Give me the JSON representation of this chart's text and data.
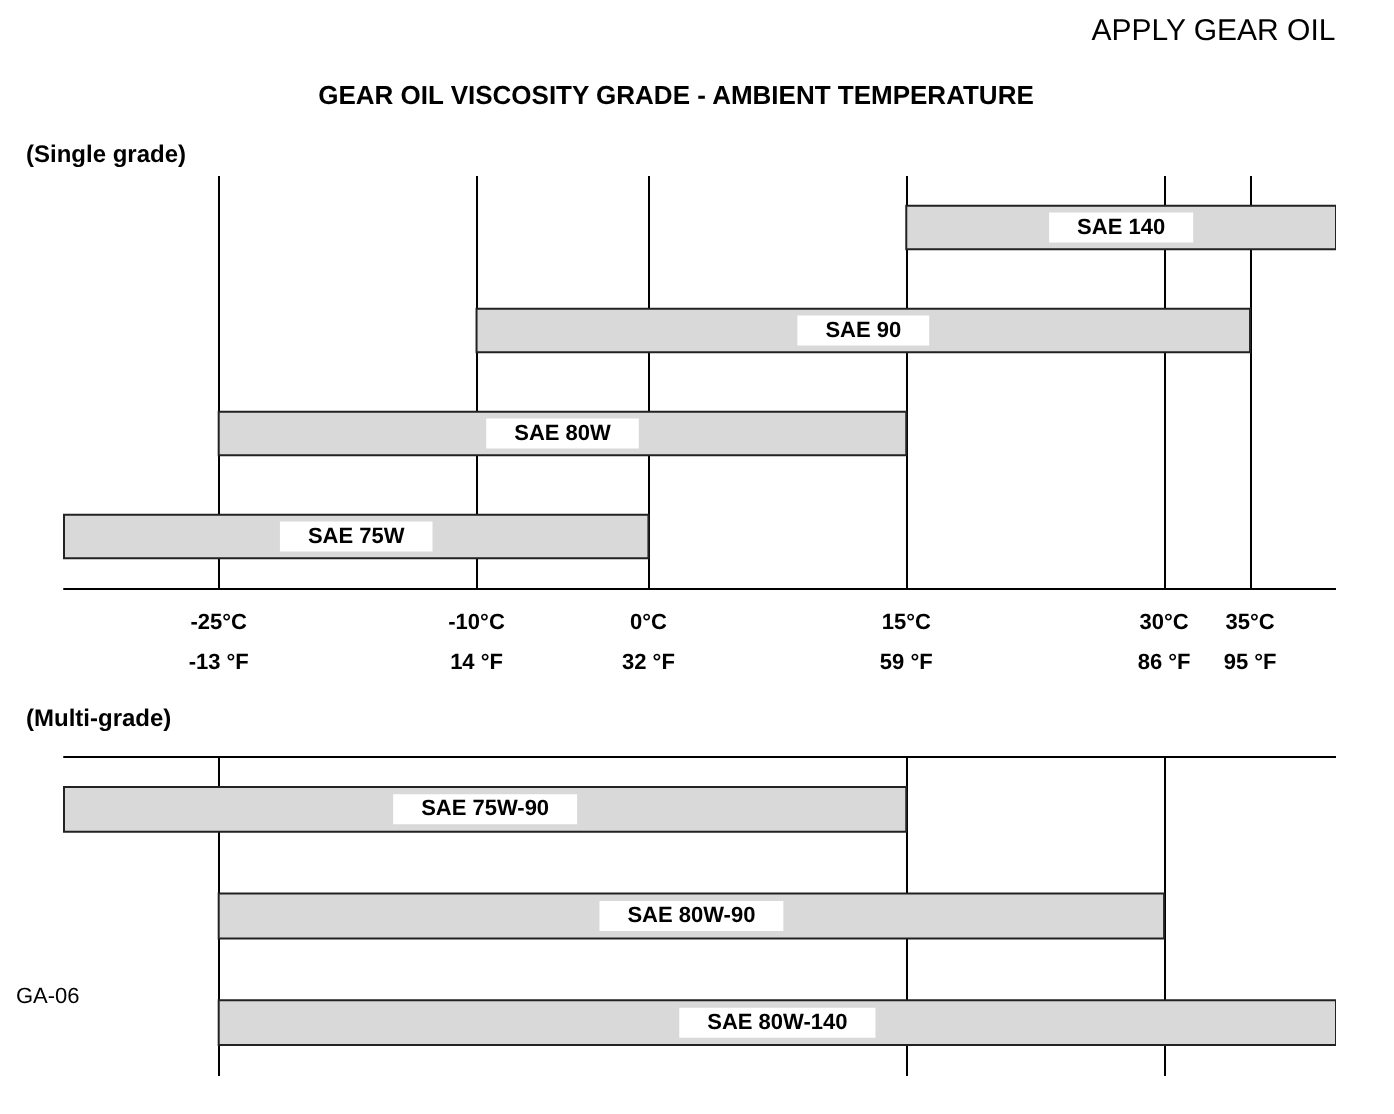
{
  "chart_data": [
    {
      "type": "bar",
      "orientation": "horizontal",
      "title": "GEAR OIL VISCOSITY GRADE - AMBIENT TEMPERATURE",
      "subtitle": "(Single grade)",
      "annotations": [
        "APPLY GEAR OIL"
      ],
      "categories": [
        "SAE 140",
        "SAE 90",
        "SAE 80W",
        "SAE 75W"
      ],
      "base": [
        15,
        -10,
        -25,
        -34
      ],
      "values": [
        25,
        45,
        40,
        34
      ],
      "color": "#d9d9d9",
      "xlim": [
        -34,
        40
      ],
      "xticks": [
        {
          "value": -25,
          "label": "-25°C"
        },
        {
          "value": -10,
          "label": "-10°C"
        },
        {
          "value": 0,
          "label": "0°C"
        },
        {
          "value": 15,
          "label": "15°C"
        },
        {
          "value": 30,
          "label": "30°C"
        },
        {
          "value": 35,
          "label": "35°C"
        }
      ],
      "x2lim": [
        -29.2,
        104
      ],
      "x2ticks": [
        {
          "value": -13,
          "label": "-13 °F"
        },
        {
          "value": 14,
          "label": "14 °F"
        },
        {
          "value": 32,
          "label": "32 °F"
        },
        {
          "value": 59,
          "label": "59 °F"
        },
        {
          "value": 86,
          "label": "86 °F"
        },
        {
          "value": 95,
          "label": "95 °F"
        }
      ],
      "grid": "x"
    },
    {
      "type": "bar",
      "orientation": "horizontal",
      "title": "(Multi-grade)",
      "annotations": [
        "GA-06"
      ],
      "categories": [
        "SAE 75W-90",
        "SAE 80W-90",
        "SAE 80W-140"
      ],
      "base": [
        -34,
        -25,
        -25
      ],
      "values": [
        49,
        55,
        65
      ],
      "color": "#d9d9d9",
      "xlim": [
        -34,
        40
      ],
      "xticks": [
        -25,
        15,
        30
      ],
      "tick_labels": false,
      "grid": "x"
    }
  ]
}
